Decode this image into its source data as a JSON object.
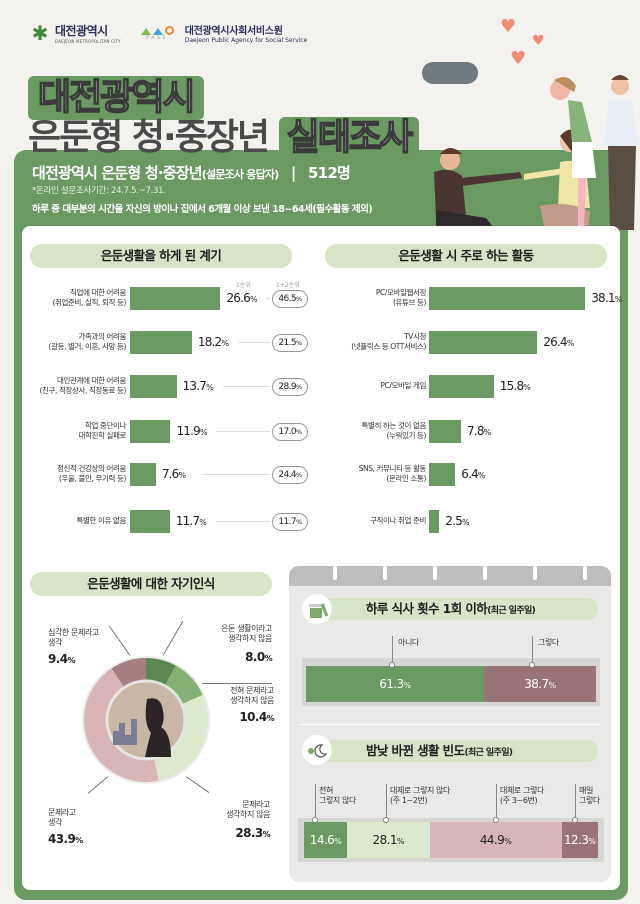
{
  "header": {
    "logo_city": {
      "name": "대전광역시",
      "sub": "DAEJEON METROPOLITAN CITY"
    },
    "logo_pass": {
      "label": "PASS"
    },
    "logo_agency": {
      "name": "대전광역시사회서비스원",
      "sub": "Daejeon Public Agency for Social Service"
    }
  },
  "title": {
    "line1": "대전광역시",
    "line2_plain": "은둔형 청·중장년",
    "line2_highlight": "실태조사"
  },
  "banner": {
    "main": "대전광역시 은둔형 청·중장년",
    "main_paren": "(설문조사 응답자)",
    "separator": "|",
    "count": "512명",
    "survey_period": "*온라인 설문조사기간: 24.7.5.~7.31.",
    "definition": "하루 중 대부분의 시간을 자신의 방이나 집에서 6개월 이상 보낸 18~64세(필수활동 제외)"
  },
  "sections": {
    "reasons_title": "은둔생활을 하게 된 계기",
    "activities_title": "은둔생활 시 주로 하는 활동",
    "self_perception_title": "은둔생활에 대한 자기인식",
    "meals_title": "하루 식사 횟수 1회 이하",
    "meals_title_sub": "(최근 일주일)",
    "daynight_title": "밤낮 바뀐 생활 빈도",
    "daynight_title_sub": "(최근 일주일)"
  },
  "reasons": {
    "rank1_header": "1순위",
    "rank12_header": "1+2순위",
    "items": [
      {
        "label1": "직업에 대한 어려움",
        "label2": "(취업준비, 실직, 퇴직 등)",
        "rank1": "26.6",
        "rank12": "46.5"
      },
      {
        "label1": "가족과의 어려움",
        "label2": "(갈등, 별거, 이혼, 사망 등)",
        "rank1": "18.2",
        "rank12": "21.5"
      },
      {
        "label1": "대인관계에 대한 어려움",
        "label2": "(친구, 직장상사, 직장동료 등)",
        "rank1": "13.7",
        "rank12": "28.9"
      },
      {
        "label1": "학업 중단이나",
        "label2": "대학진학 실패로",
        "rank1": "11.9",
        "rank12": "17.0"
      },
      {
        "label1": "정신적 건강상의 어려움",
        "label2": "(우울, 불안, 무기력 등)",
        "rank1": "7.6",
        "rank12": "24.4"
      },
      {
        "label1": "특별한 이유 없음",
        "label2": "",
        "rank1": "11.7",
        "rank12": "11.7"
      }
    ]
  },
  "activities": {
    "items": [
      {
        "label1": "PC/모바일웹서핑",
        "label2": "(유튜브 등)",
        "value": "38.1"
      },
      {
        "label1": "TV시청",
        "label2": "(넷플릭스 등 OTT서비스)",
        "value": "26.4"
      },
      {
        "label1": "PC/모바일 게임",
        "label2": "",
        "value": "15.8"
      },
      {
        "label1": "특별히 하는 것이 없음",
        "label2": "(누워있기 등)",
        "value": "7.8"
      },
      {
        "label1": "SNS, 커뮤니티 등 활동",
        "label2": "(온라인 소통)",
        "value": "6.4"
      },
      {
        "label1": "구직이나 취업 준비",
        "label2": "",
        "value": "2.5"
      }
    ]
  },
  "self_perception": {
    "items": [
      {
        "label1": "은둔 생활이라고",
        "label2": "생각하지 않음",
        "value": "8.0",
        "color": "#5b8752"
      },
      {
        "label1": "전혀 문제라고",
        "label2": "생각하지 않음",
        "value": "10.4",
        "color": "#85b274"
      },
      {
        "label1": "문제라고",
        "label2": "생각하지 않음",
        "value": "28.3",
        "color": "#dde9cc"
      },
      {
        "label1": "문제라고",
        "label2": "생각",
        "value": "43.9",
        "color": "#d9b5b8"
      },
      {
        "label1": "심각한 문제라고",
        "label2": "생각",
        "value": "9.4",
        "color": "#a67e80"
      }
    ]
  },
  "meals": {
    "items": [
      {
        "label": "아니다",
        "value": "61.3",
        "color": "#6a9a62"
      },
      {
        "label": "그렇다",
        "value": "38.7",
        "color": "#9a7377"
      }
    ]
  },
  "daynight": {
    "items": [
      {
        "label1": "전혀",
        "label2": "그렇지 않다",
        "value": "14.6",
        "color": "#6a9a62"
      },
      {
        "label1": "대체로 그렇지 않다",
        "label2": "(주 1~2번)",
        "value": "28.1",
        "color": "#dde9cc"
      },
      {
        "label1": "대체로 그렇다",
        "label2": "(주 3~6번)",
        "value": "44.9",
        "color": "#d9b5b8"
      },
      {
        "label1": "매일",
        "label2": "그렇다",
        "value": "12.3",
        "color": "#9a7377"
      }
    ]
  },
  "pct_sign": "%",
  "colors": {
    "brand_green": "#6a9a62",
    "pill_green": "#d7e4c8",
    "mauve": "#9a7377",
    "pink": "#d9b5b8",
    "light_green": "#dde9cc",
    "background": "#f3f2ef"
  },
  "chart_data": [
    {
      "type": "bar",
      "title": "은둔생활을 하게 된 계기",
      "categories": [
        "직업에 대한 어려움 (취업준비, 실직, 퇴직 등)",
        "가족과의 어려움 (갈등, 별거, 이혼, 사망 등)",
        "대인관계에 대한 어려움 (친구, 직장상사, 직장동료 등)",
        "학업 중단이나 대학진학 실패로",
        "정신적 건강상의 어려움 (우울, 불안, 무기력 등)",
        "특별한 이유 없음"
      ],
      "series": [
        {
          "name": "1순위",
          "values": [
            26.6,
            18.2,
            13.7,
            11.9,
            7.6,
            11.7
          ]
        },
        {
          "name": "1+2순위",
          "values": [
            46.5,
            21.5,
            28.9,
            17.0,
            24.4,
            11.7
          ]
        }
      ],
      "unit": "%",
      "orientation": "horizontal"
    },
    {
      "type": "bar",
      "title": "은둔생활 시 주로 하는 활동",
      "categories": [
        "PC/모바일웹서핑 (유튜브 등)",
        "TV시청 (넷플릭스 등 OTT서비스)",
        "PC/모바일 게임",
        "특별히 하는 것이 없음 (누워있기 등)",
        "SNS, 커뮤니티 등 활동 (온라인 소통)",
        "구직이나 취업 준비"
      ],
      "values": [
        38.1,
        26.4,
        15.8,
        7.8,
        6.4,
        2.5
      ],
      "unit": "%",
      "orientation": "horizontal"
    },
    {
      "type": "pie",
      "title": "은둔생활에 대한 자기인식",
      "categories": [
        "은둔 생활이라고 생각하지 않음",
        "전혀 문제라고 생각하지 않음",
        "문제라고 생각하지 않음",
        "문제라고 생각",
        "심각한 문제라고 생각"
      ],
      "values": [
        8.0,
        10.4,
        28.3,
        43.9,
        9.4
      ],
      "unit": "%",
      "donut": true
    },
    {
      "type": "bar",
      "title": "하루 식사 횟수 1회 이하(최근 일주일)",
      "categories": [
        "아니다",
        "그렇다"
      ],
      "values": [
        61.3,
        38.7
      ],
      "unit": "%",
      "stacked": true
    },
    {
      "type": "bar",
      "title": "밤낮 바뀐 생활 빈도(최근 일주일)",
      "categories": [
        "전혀 그렇지 않다",
        "대체로 그렇지 않다 (주 1~2번)",
        "대체로 그렇다 (주 3~6번)",
        "매일 그렇다"
      ],
      "values": [
        14.6,
        28.1,
        44.9,
        12.3
      ],
      "unit": "%",
      "stacked": true
    }
  ]
}
